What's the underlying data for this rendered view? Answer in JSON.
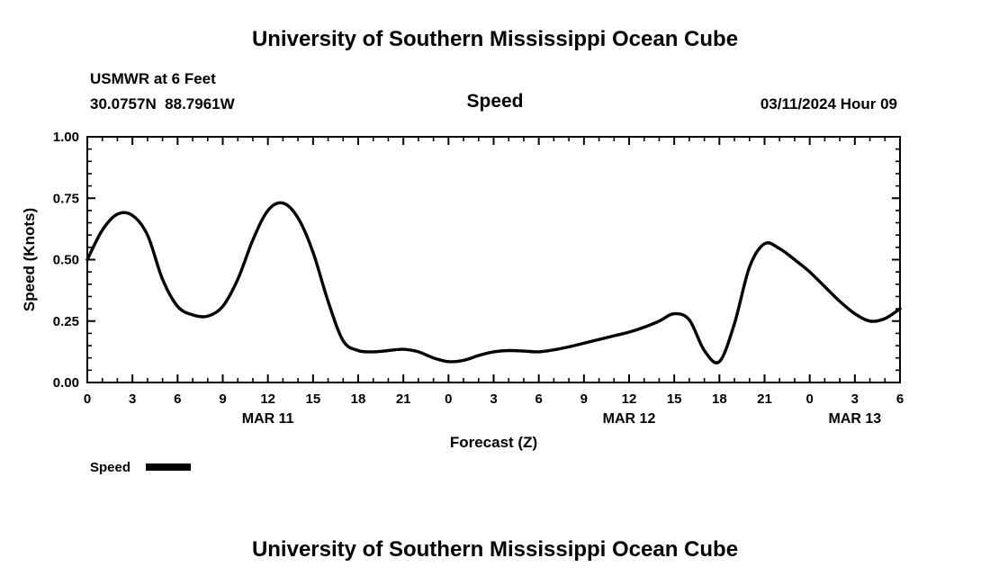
{
  "header": {
    "title": "University of Southern Mississippi Ocean Cube",
    "station": "USMWR at 6 Feet",
    "coordinates": "30.0757N  88.7961W",
    "plot_title": "Speed",
    "datetime": "03/11/2024 Hour 09"
  },
  "footer": {
    "title": "University of Southern Mississippi Ocean Cube"
  },
  "chart_data": {
    "type": "line",
    "title": "Speed",
    "xlabel": "Forecast (Z)",
    "ylabel": "Speed (Knots)",
    "xlim": [
      0,
      54
    ],
    "ylim": [
      0,
      1
    ],
    "x_major_step": 3,
    "x_minor_step": 1,
    "y_major_step": 0.25,
    "y_minor_step": 0.05,
    "grid": false,
    "ytick_labels": [
      "0.00",
      "0.25",
      "0.50",
      "0.75",
      "1.00"
    ],
    "xtick_hours": [
      0,
      3,
      6,
      9,
      12,
      15,
      18,
      21,
      24,
      27,
      30,
      33,
      36,
      39,
      42,
      45,
      48,
      51,
      54
    ],
    "xtick_labels": [
      "0",
      "3",
      "6",
      "9",
      "12",
      "15",
      "18",
      "21",
      "0",
      "3",
      "6",
      "9",
      "12",
      "15",
      "18",
      "21",
      "0",
      "3",
      "6"
    ],
    "day_labels": [
      {
        "label": "MAR 11",
        "center_hour": 12
      },
      {
        "label": "MAR 12",
        "center_hour": 36
      },
      {
        "label": "MAR 13",
        "center_hour": 51
      }
    ],
    "legend": {
      "position": "bottom-left",
      "entries": [
        {
          "label": "Speed",
          "color": "#000000"
        }
      ]
    },
    "series": [
      {
        "name": "Speed",
        "color": "#000000",
        "x": [
          0,
          1,
          2,
          3,
          4,
          5,
          6,
          7,
          8,
          9,
          10,
          11,
          12,
          13,
          14,
          15,
          16,
          17,
          18,
          19,
          20,
          21,
          22,
          23,
          24,
          25,
          26,
          27,
          28,
          29,
          30,
          31,
          32,
          33,
          34,
          35,
          36,
          37,
          38,
          39,
          40,
          41,
          42,
          43,
          44,
          45,
          46,
          47,
          48,
          49,
          50,
          51,
          52,
          53,
          54
        ],
        "values": [
          0.5,
          0.62,
          0.685,
          0.68,
          0.6,
          0.42,
          0.31,
          0.275,
          0.27,
          0.31,
          0.42,
          0.58,
          0.7,
          0.73,
          0.67,
          0.53,
          0.33,
          0.17,
          0.13,
          0.125,
          0.13,
          0.135,
          0.125,
          0.1,
          0.085,
          0.09,
          0.11,
          0.125,
          0.13,
          0.128,
          0.125,
          0.133,
          0.145,
          0.16,
          0.175,
          0.19,
          0.205,
          0.225,
          0.25,
          0.28,
          0.255,
          0.13,
          0.085,
          0.24,
          0.47,
          0.565,
          0.545,
          0.5,
          0.45,
          0.39,
          0.33,
          0.28,
          0.25,
          0.26,
          0.3
        ]
      }
    ]
  }
}
